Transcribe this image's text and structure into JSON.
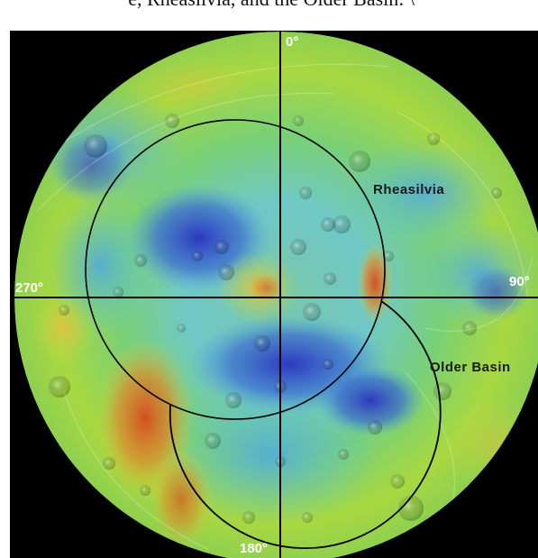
{
  "caption": {
    "text": "e, Rheasilvia, and the Older Basin: \\"
  },
  "map": {
    "longitudes": {
      "top": "0°",
      "right": "90°",
      "bottom": "180°",
      "left": "270°"
    },
    "basins": [
      {
        "name": "Rheasilvia"
      },
      {
        "name": "Older Basin"
      }
    ]
  },
  "colors": {
    "frame": "#000000",
    "low": "#2a2ab8",
    "mid_low": "#4f9fe0",
    "mid": "#6fd08a",
    "mid_high": "#c8d640",
    "high": "#d85a1e",
    "grid_lines": "#000000"
  }
}
